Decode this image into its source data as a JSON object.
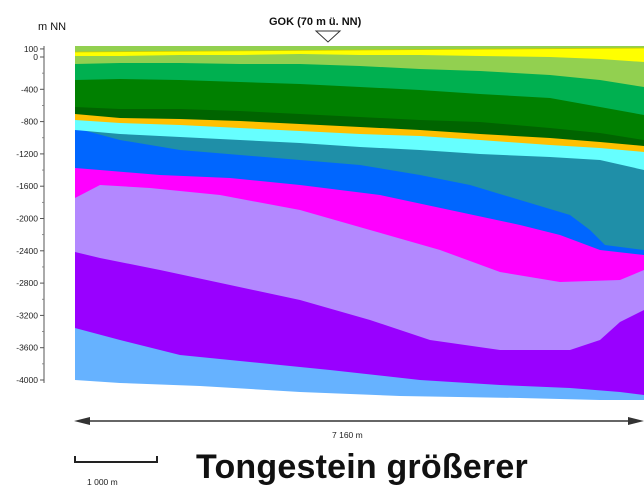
{
  "header": {
    "y_unit": "m NN",
    "gok_label": "GOK (70 m ü. NN)"
  },
  "y_ticks": [
    "100",
    "0",
    "-400",
    "-800",
    "-1200",
    "-1600",
    "-2000",
    "-2400",
    "-2800",
    "-3200",
    "-3600",
    "-4000"
  ],
  "width_label": "7 160 m",
  "scale_bar_label": "1 000 m",
  "caption": "Tongestein größerer",
  "colors": {
    "yellow": "#ffff00",
    "light_green": "#92d050",
    "green": "#00b050",
    "dark_green": "#008000",
    "darkest_green": "#006400",
    "orange": "#ffc000",
    "cyan": "#66ffff",
    "teal": "#1f8fa8",
    "blue": "#0066ff",
    "magenta": "#ff00ff",
    "lavender": "#b388ff",
    "violet": "#9900ff",
    "light_blue": "#66b2ff"
  }
}
